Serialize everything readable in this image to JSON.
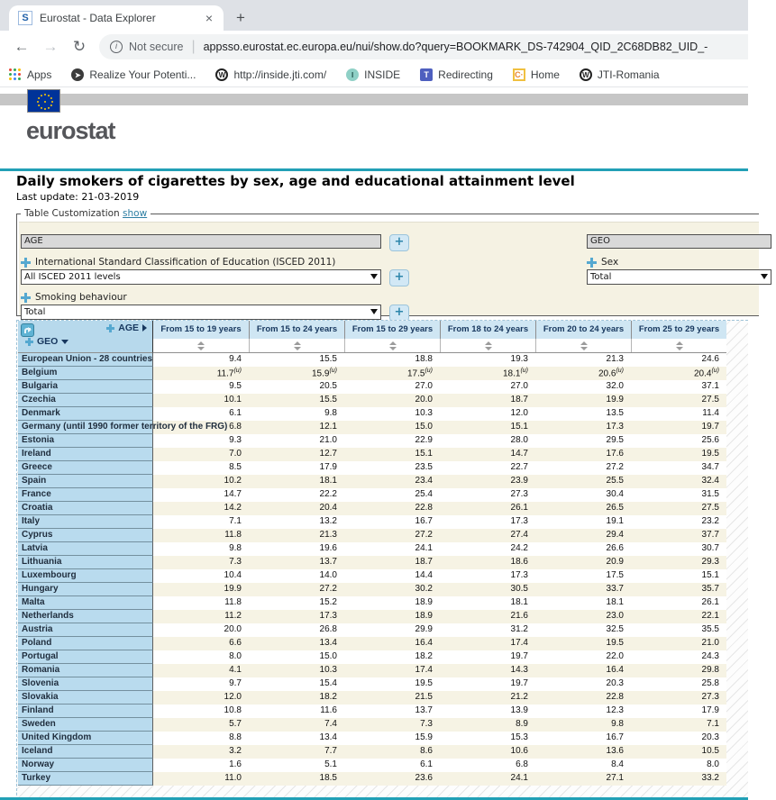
{
  "browser": {
    "tab_title": "Eurostat - Data Explorer",
    "favicon_letter": "S",
    "close": "×",
    "newtab": "+",
    "back": "←",
    "forward": "→",
    "reload": "↻",
    "not_secure": "Not secure",
    "url": "appsso.eurostat.ec.europa.eu/nui/show.do?query=BOOKMARK_DS-742904_QID_2C68DB82_UID_-",
    "bookmarks": [
      "Apps",
      "Realize Your Potenti...",
      "http://inside.jti.com/",
      "INSIDE",
      "Redirecting",
      "Home",
      "JTI-Romania"
    ]
  },
  "site": {
    "logo_text": "eurostat"
  },
  "page": {
    "title": "Daily smokers of cigarettes by sex, age and educational attainment level",
    "last_update": "Last update: 21-03-2019"
  },
  "custom": {
    "legend": "Table Customization",
    "show": "show",
    "age": "AGE",
    "isced_label": "International Standard Classification of Education (ISCED 2011)",
    "isced_value": "All ISCED 2011 levels",
    "smoking_label": "Smoking behaviour",
    "smoking_value": "Total",
    "geo": "GEO",
    "sex_label": "Sex",
    "sex_value": "Total",
    "plus": "+"
  },
  "table": {
    "corner_age": "AGE",
    "corner_geo": "GEO",
    "columns": [
      "From 15 to 19 years",
      "From 15 to 24 years",
      "From 15 to 29 years",
      "From 18 to 24 years",
      "From 20 to 24 years",
      "From 25 to 29 years"
    ],
    "flag_label": "(u)",
    "rows": [
      {
        "name": "European Union - 28 countries",
        "values": [
          "9.4",
          "15.5",
          "18.8",
          "19.3",
          "21.3",
          "24.6"
        ]
      },
      {
        "name": "Belgium",
        "values": [
          "11.7",
          "15.9",
          "17.5",
          "18.1",
          "20.6",
          "20.4"
        ],
        "flag": "u"
      },
      {
        "name": "Bulgaria",
        "values": [
          "9.5",
          "20.5",
          "27.0",
          "27.0",
          "32.0",
          "37.1"
        ]
      },
      {
        "name": "Czechia",
        "values": [
          "10.1",
          "15.5",
          "20.0",
          "18.7",
          "19.9",
          "27.5"
        ]
      },
      {
        "name": "Denmark",
        "values": [
          "6.1",
          "9.8",
          "10.3",
          "12.0",
          "13.5",
          "11.4"
        ]
      },
      {
        "name": "Germany (until 1990 former territory of the FRG)",
        "values": [
          "6.8",
          "12.1",
          "15.0",
          "15.1",
          "17.3",
          "19.7"
        ]
      },
      {
        "name": "Estonia",
        "values": [
          "9.3",
          "21.0",
          "22.9",
          "28.0",
          "29.5",
          "25.6"
        ]
      },
      {
        "name": "Ireland",
        "values": [
          "7.0",
          "12.7",
          "15.1",
          "14.7",
          "17.6",
          "19.5"
        ]
      },
      {
        "name": "Greece",
        "values": [
          "8.5",
          "17.9",
          "23.5",
          "22.7",
          "27.2",
          "34.7"
        ]
      },
      {
        "name": "Spain",
        "values": [
          "10.2",
          "18.1",
          "23.4",
          "23.9",
          "25.5",
          "32.4"
        ]
      },
      {
        "name": "France",
        "values": [
          "14.7",
          "22.2",
          "25.4",
          "27.3",
          "30.4",
          "31.5"
        ]
      },
      {
        "name": "Croatia",
        "values": [
          "14.2",
          "20.4",
          "22.8",
          "26.1",
          "26.5",
          "27.5"
        ]
      },
      {
        "name": "Italy",
        "values": [
          "7.1",
          "13.2",
          "16.7",
          "17.3",
          "19.1",
          "23.2"
        ]
      },
      {
        "name": "Cyprus",
        "values": [
          "11.8",
          "21.3",
          "27.2",
          "27.4",
          "29.4",
          "37.7"
        ]
      },
      {
        "name": "Latvia",
        "values": [
          "9.8",
          "19.6",
          "24.1",
          "24.2",
          "26.6",
          "30.7"
        ]
      },
      {
        "name": "Lithuania",
        "values": [
          "7.3",
          "13.7",
          "18.7",
          "18.6",
          "20.9",
          "29.3"
        ]
      },
      {
        "name": "Luxembourg",
        "values": [
          "10.4",
          "14.0",
          "14.4",
          "17.3",
          "17.5",
          "15.1"
        ]
      },
      {
        "name": "Hungary",
        "values": [
          "19.9",
          "27.2",
          "30.2",
          "30.5",
          "33.7",
          "35.7"
        ]
      },
      {
        "name": "Malta",
        "values": [
          "11.8",
          "15.2",
          "18.9",
          "18.1",
          "18.1",
          "26.1"
        ]
      },
      {
        "name": "Netherlands",
        "values": [
          "11.2",
          "17.3",
          "18.9",
          "21.6",
          "23.0",
          "22.1"
        ]
      },
      {
        "name": "Austria",
        "values": [
          "20.0",
          "26.8",
          "29.9",
          "31.2",
          "32.5",
          "35.5"
        ]
      },
      {
        "name": "Poland",
        "values": [
          "6.6",
          "13.4",
          "16.4",
          "17.4",
          "19.5",
          "21.0"
        ]
      },
      {
        "name": "Portugal",
        "values": [
          "8.0",
          "15.0",
          "18.2",
          "19.7",
          "22.0",
          "24.3"
        ]
      },
      {
        "name": "Romania",
        "values": [
          "4.1",
          "10.3",
          "17.4",
          "14.3",
          "16.4",
          "29.8"
        ]
      },
      {
        "name": "Slovenia",
        "values": [
          "9.7",
          "15.4",
          "19.5",
          "19.7",
          "20.3",
          "25.8"
        ]
      },
      {
        "name": "Slovakia",
        "values": [
          "12.0",
          "18.2",
          "21.5",
          "21.2",
          "22.8",
          "27.3"
        ]
      },
      {
        "name": "Finland",
        "values": [
          "10.8",
          "11.6",
          "13.7",
          "13.9",
          "12.3",
          "17.9"
        ]
      },
      {
        "name": "Sweden",
        "values": [
          "5.7",
          "7.4",
          "7.3",
          "8.9",
          "9.8",
          "7.1"
        ]
      },
      {
        "name": "United Kingdom",
        "values": [
          "8.8",
          "13.4",
          "15.9",
          "15.3",
          "16.7",
          "20.3"
        ]
      },
      {
        "name": "Iceland",
        "values": [
          "3.2",
          "7.7",
          "8.6",
          "10.6",
          "13.6",
          "10.5"
        ]
      },
      {
        "name": "Norway",
        "values": [
          "1.6",
          "5.1",
          "6.1",
          "6.8",
          "8.4",
          "8.0"
        ]
      },
      {
        "name": "Turkey",
        "values": [
          "11.0",
          "18.5",
          "23.6",
          "24.1",
          "27.1",
          "33.2"
        ]
      }
    ]
  }
}
